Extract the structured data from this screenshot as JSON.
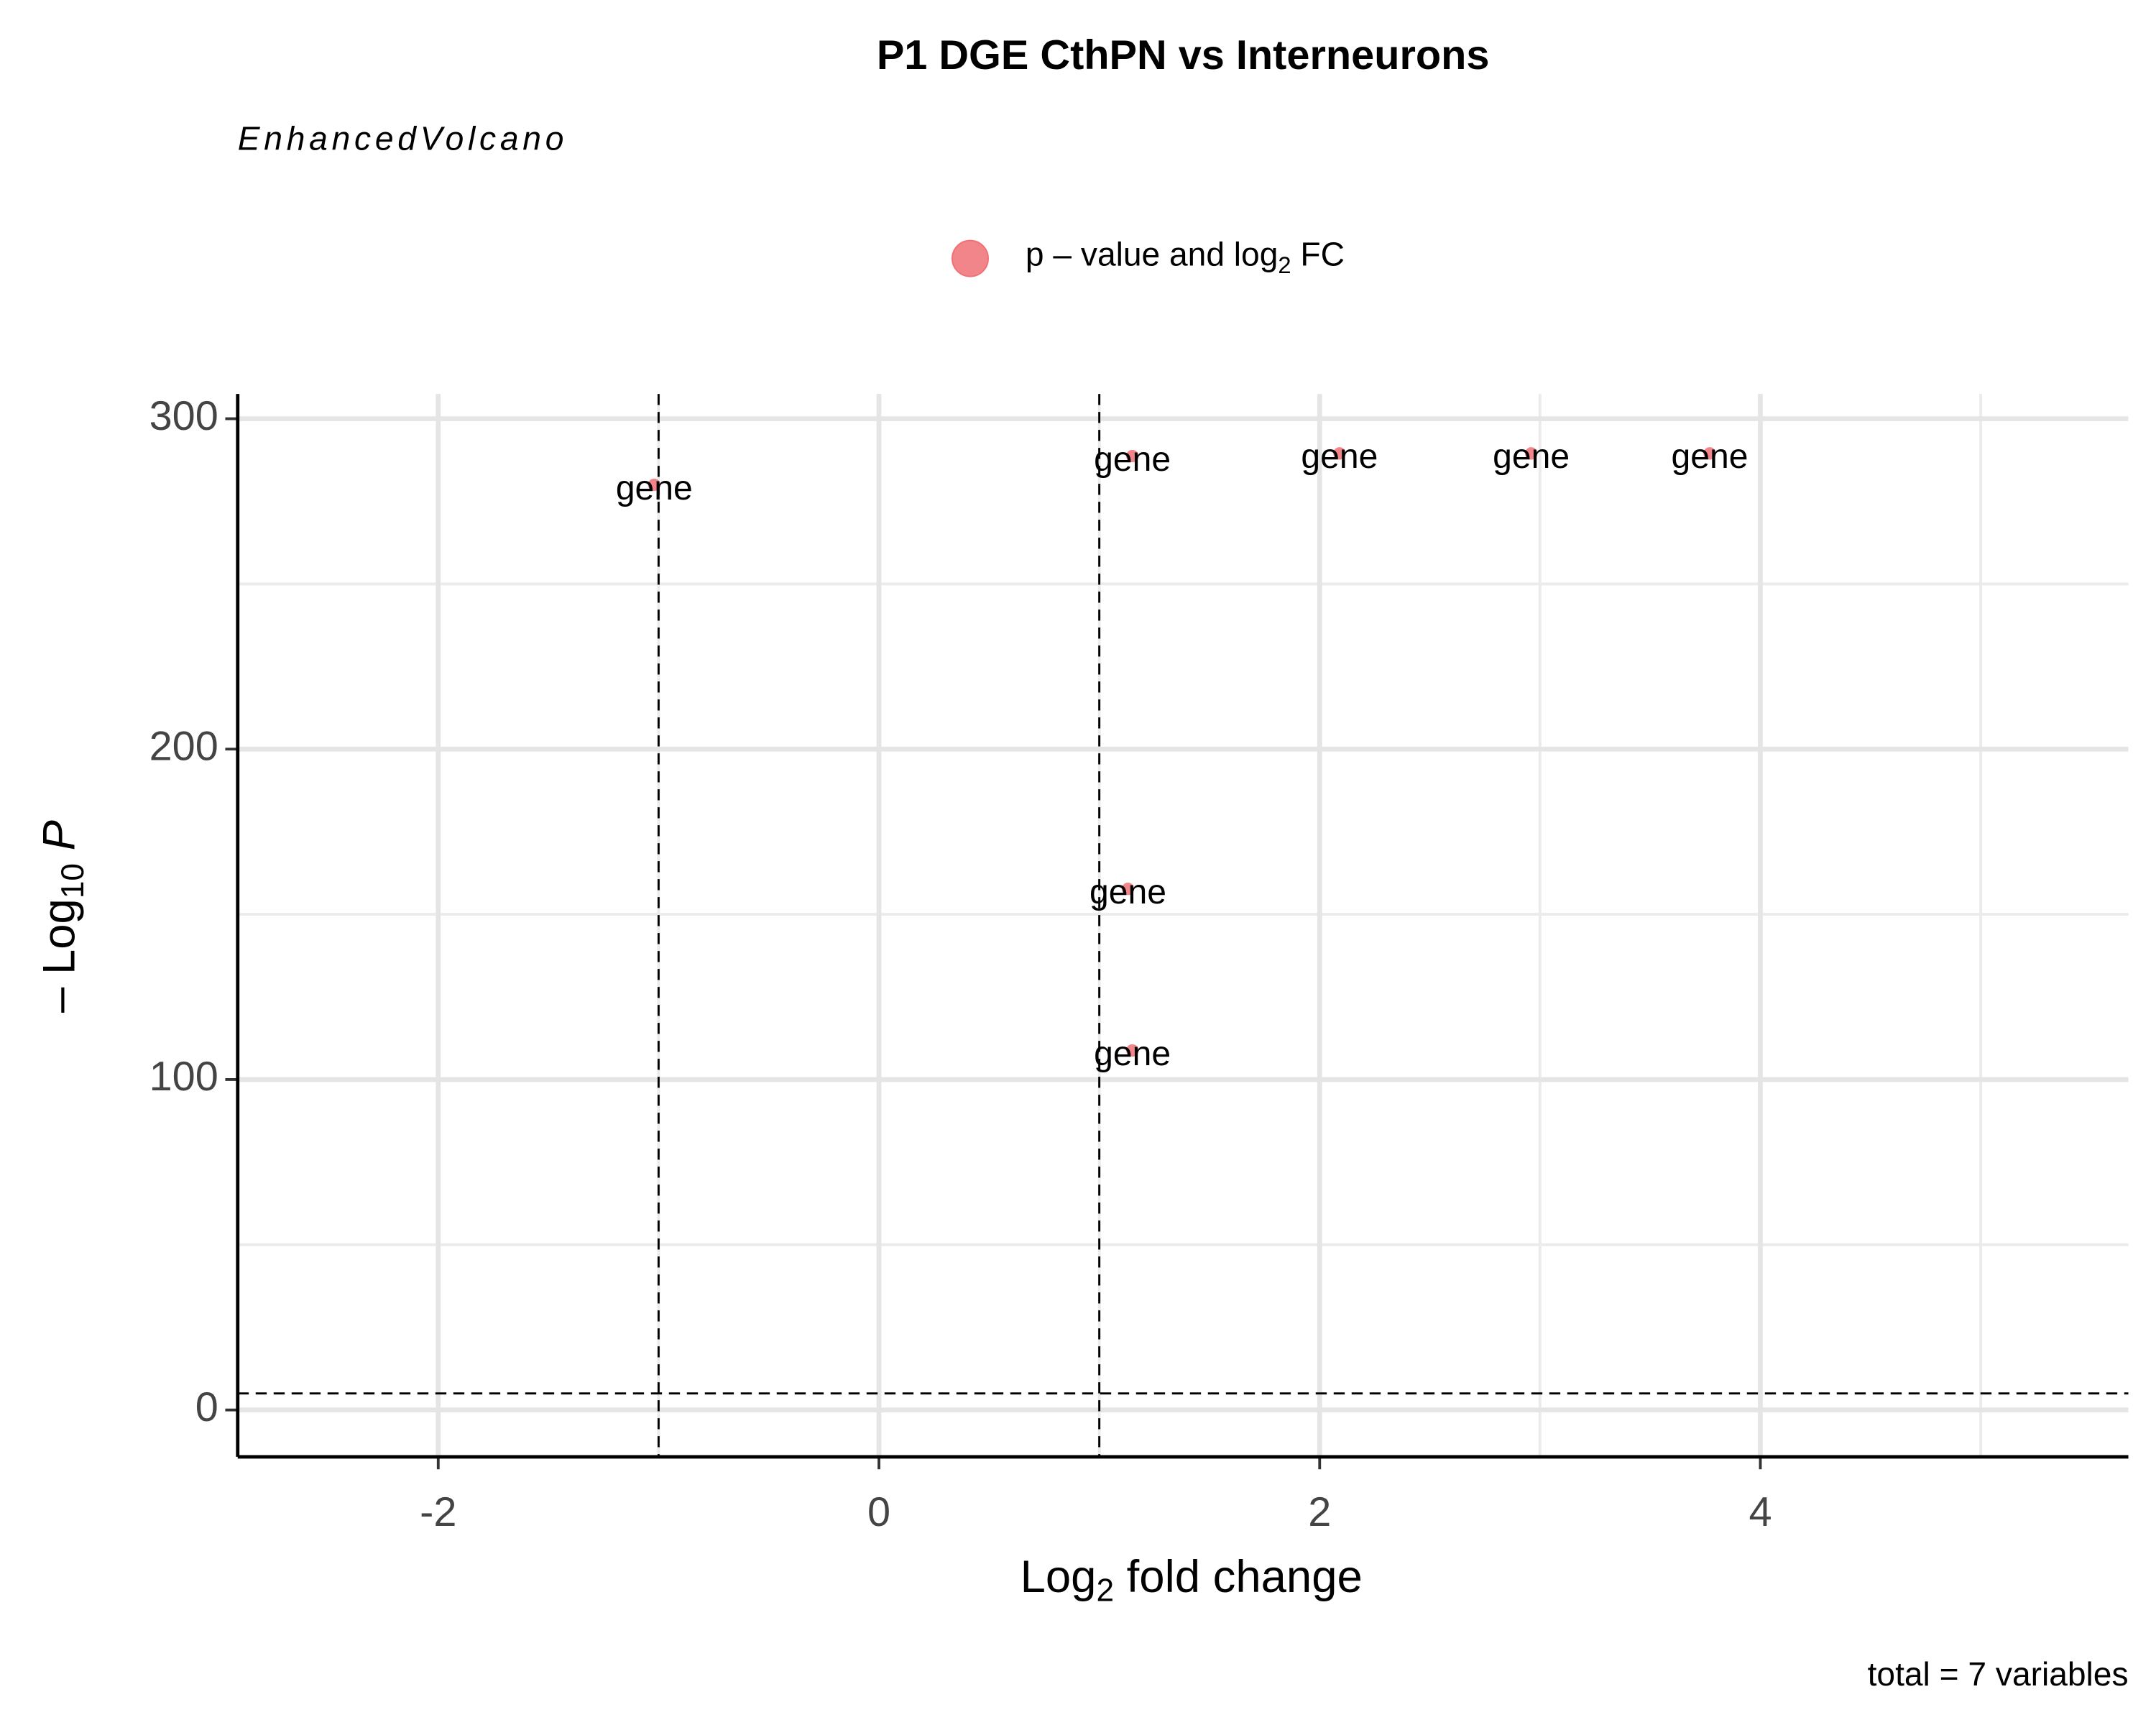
{
  "chart_data": {
    "type": "scatter",
    "title": "P1 DGE CthPN vs Interneurons",
    "subtitle": "EnhancedVolcano",
    "caption": "total = 7 variables",
    "legend_label": [
      "p – value and log",
      "2",
      " FC"
    ],
    "xlabel": [
      "Log",
      "2",
      " fold change"
    ],
    "ylabel": [
      "– Log",
      "10",
      " P"
    ],
    "series": [
      {
        "color": "#f07075",
        "x": [
          -1.02,
          1.15,
          2.09,
          2.96,
          3.77,
          1.13,
          1.15
        ],
        "values": [
          280,
          288.7,
          289.5,
          289.5,
          289.5,
          157.7,
          108.8
        ],
        "point_labels": [
          "gene",
          "gene",
          "gene",
          "gene",
          "gene",
          "gene",
          "gene"
        ]
      }
    ],
    "cutoffs": {
      "x": [
        -1,
        1
      ],
      "y": 5
    },
    "xlim": [
      -2.91,
      5.67
    ],
    "xticks": [
      -2,
      0,
      2,
      4
    ],
    "ylim": [
      -14.2,
      307.5
    ],
    "yticks": [
      0,
      100,
      200,
      300
    ],
    "grid": true,
    "legend": "top"
  }
}
